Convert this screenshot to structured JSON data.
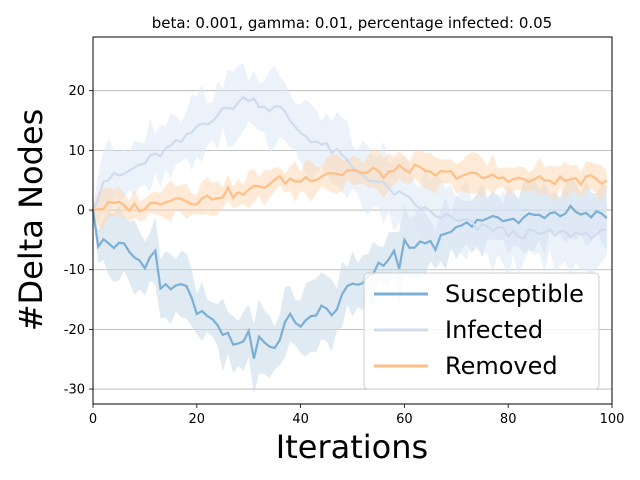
{
  "chart_data": {
    "type": "line",
    "title": "beta: 0.001, gamma: 0.01, percentage infected: 0.05",
    "xlabel": "Iterations",
    "ylabel": "#Delta Nodes",
    "xlim": [
      0,
      100
    ],
    "ylim": [
      -32.5,
      29
    ],
    "xticks": [
      0,
      20,
      40,
      60,
      80,
      100
    ],
    "yticks": [
      -30,
      -20,
      -10,
      0,
      10,
      20
    ],
    "grid": "horizontal",
    "legend_position": "lower-right",
    "series": [
      {
        "name": "Susceptible",
        "color": "#7bafd4",
        "band_color": "#c5d8ea",
        "anchors_x": [
          0,
          1,
          2,
          4,
          6,
          8,
          10,
          12,
          13,
          15,
          17,
          19,
          20,
          22,
          24,
          26,
          28,
          30,
          31,
          32,
          34,
          36,
          38,
          40,
          42,
          44,
          46,
          48,
          50,
          52,
          54,
          56,
          58,
          59,
          60,
          62,
          64,
          66,
          68,
          70,
          72,
          74,
          76,
          78,
          80,
          82,
          84,
          86,
          88,
          90,
          92,
          94,
          96,
          98,
          99
        ],
        "anchors_y": [
          0,
          -6.5,
          -5,
          -6,
          -6,
          -8,
          -9,
          -7,
          -13,
          -13,
          -12,
          -15,
          -18,
          -17,
          -20,
          -21,
          -23,
          -20,
          -25,
          -21,
          -23,
          -22,
          -17,
          -20,
          -18,
          -16,
          -18,
          -14,
          -13,
          -12,
          -10,
          -9,
          -7,
          -10,
          -5,
          -7,
          -5,
          -6,
          -4,
          -3,
          -2,
          -2,
          -1,
          -2,
          -1,
          -2,
          -1,
          -1,
          -0.5,
          -0.5,
          0,
          -1,
          -1,
          -0.5,
          -1
        ],
        "band_halfwidth": 4.5
      },
      {
        "name": "Infected",
        "color": "#cfdcef",
        "band_color": "#dde7f5",
        "anchors_x": [
          0,
          2,
          4,
          6,
          8,
          10,
          12,
          14,
          16,
          18,
          20,
          22,
          24,
          26,
          28,
          30,
          32,
          34,
          36,
          38,
          40,
          42,
          44,
          46,
          48,
          50,
          52,
          54,
          56,
          58,
          60,
          62,
          64,
          66,
          68,
          70,
          72,
          74,
          76,
          78,
          80,
          82,
          84,
          86,
          88,
          90,
          92,
          94,
          96,
          98,
          99
        ],
        "anchors_y": [
          0,
          5,
          5.5,
          6,
          7,
          8,
          9,
          10,
          11,
          12,
          14,
          15,
          16,
          17,
          18,
          19,
          18,
          17,
          17,
          15,
          13,
          12,
          11,
          10,
          9,
          7,
          6,
          5,
          4,
          3,
          2,
          1,
          0,
          -1,
          -1,
          -2,
          -2,
          -3,
          -3,
          -3,
          -4,
          -4,
          -4,
          -4,
          -4,
          -4,
          -4,
          -4,
          -4,
          -4,
          -4
        ],
        "band_halfwidth": 5
      },
      {
        "name": "Removed",
        "color": "#ffbf86",
        "band_color": "#fdd9b5",
        "anchors_x": [
          0,
          2,
          4,
          6,
          8,
          10,
          12,
          14,
          16,
          18,
          20,
          22,
          24,
          26,
          28,
          30,
          32,
          34,
          36,
          38,
          40,
          42,
          44,
          46,
          48,
          50,
          52,
          54,
          56,
          58,
          60,
          62,
          64,
          66,
          68,
          70,
          72,
          74,
          76,
          78,
          80,
          82,
          84,
          86,
          88,
          90,
          92,
          94,
          96,
          98,
          99
        ],
        "anchors_y": [
          0,
          0.5,
          1,
          0.5,
          0.5,
          0.5,
          1,
          2,
          2,
          2,
          1.5,
          2,
          2.5,
          3,
          2.5,
          3,
          4,
          4.5,
          5,
          5,
          5,
          5.5,
          6,
          6.5,
          6,
          7,
          6,
          6.5,
          6,
          6.5,
          7,
          7,
          6,
          6,
          6,
          6,
          6,
          5.5,
          5.5,
          5.5,
          5.5,
          5,
          5,
          5,
          5,
          5,
          5,
          5,
          5,
          5,
          5
        ],
        "band_halfwidth": 2.5
      }
    ]
  }
}
